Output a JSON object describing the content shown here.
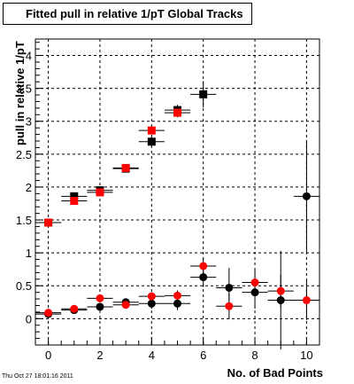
{
  "title": "Fitted pull in relative 1/pT  Global Tracks",
  "timestamp": "Thu Oct 27 18:01:16 2011",
  "chart_data": {
    "type": "scatter",
    "title": "Fitted pull in relative 1/pT  Global Tracks",
    "xlabel": "No. of Bad Points",
    "ylabel": "pull in relative 1/pT",
    "xlim": [
      -0.5,
      10.5
    ],
    "ylim": [
      -0.4,
      4.25
    ],
    "xticks": [
      0,
      2,
      4,
      6,
      8,
      10
    ],
    "yticks": [
      0,
      0.5,
      1,
      1.5,
      2,
      2.5,
      3,
      3.5,
      4
    ],
    "ytick_labels": [
      "0",
      "0.5",
      "1",
      "1.5",
      "2",
      "2.5",
      "3",
      "3.5",
      "4"
    ],
    "grid": true,
    "series": [
      {
        "marker": "square",
        "color": "#000000",
        "points": [
          {
            "x": 0,
            "y": 1.46,
            "err": 0.02
          },
          {
            "x": 1,
            "y": 1.86,
            "err": 0.03
          },
          {
            "x": 2,
            "y": 1.95,
            "err": 0.04
          },
          {
            "x": 3,
            "y": 2.28,
            "err": 0.04
          },
          {
            "x": 4,
            "y": 2.69,
            "err": 0.07
          },
          {
            "x": 5,
            "y": 3.17,
            "err": 0.08
          },
          {
            "x": 6,
            "y": 3.41,
            "err": 0.2
          }
        ]
      },
      {
        "marker": "square",
        "color": "#ff0000",
        "points": [
          {
            "x": 0,
            "y": 1.46,
            "err": 0.02
          },
          {
            "x": 1,
            "y": 1.79,
            "err": 0.03
          },
          {
            "x": 2,
            "y": 1.92,
            "err": 0.04
          },
          {
            "x": 3,
            "y": 2.29,
            "err": 0.04
          },
          {
            "x": 4,
            "y": 2.86,
            "err": 0.06
          },
          {
            "x": 5,
            "y": 3.13,
            "err": 0.07
          }
        ]
      },
      {
        "marker": "circle",
        "color": "#000000",
        "points": [
          {
            "x": 0,
            "y": 0.07,
            "err": 0.02
          },
          {
            "x": 1,
            "y": 0.13,
            "err": 0.03
          },
          {
            "x": 2,
            "y": 0.18,
            "err": 0.05
          },
          {
            "x": 3,
            "y": 0.25,
            "err": 0.05
          },
          {
            "x": 4,
            "y": 0.23,
            "err": 0.08
          },
          {
            "x": 5,
            "y": 0.23,
            "err": 0.1
          },
          {
            "x": 6,
            "y": 0.63,
            "err": 0.15
          },
          {
            "x": 7,
            "y": 0.47,
            "err": 0.3
          },
          {
            "x": 8,
            "y": 0.4,
            "err": 0.25
          },
          {
            "x": 9,
            "y": 0.28,
            "err": 0.75
          },
          {
            "x": 10,
            "y": 1.86,
            "err": 0.85
          }
        ]
      },
      {
        "marker": "circle",
        "color": "#ff0000",
        "points": [
          {
            "x": 0,
            "y": 0.09,
            "err": 0.02
          },
          {
            "x": 1,
            "y": 0.15,
            "err": 0.03
          },
          {
            "x": 2,
            "y": 0.31,
            "err": 0.04
          },
          {
            "x": 3,
            "y": 0.21,
            "err": 0.04
          },
          {
            "x": 4,
            "y": 0.34,
            "err": 0.06
          },
          {
            "x": 5,
            "y": 0.35,
            "err": 0.08
          },
          {
            "x": 6,
            "y": 0.8,
            "err": 0.12
          },
          {
            "x": 7,
            "y": 0.19,
            "err": 0.2
          },
          {
            "x": 8,
            "y": 0.55,
            "err": 0.2
          },
          {
            "x": 9,
            "y": 0.42,
            "err": 0.25
          },
          {
            "x": 10,
            "y": 0.28,
            "err": 0.3
          }
        ]
      }
    ]
  }
}
